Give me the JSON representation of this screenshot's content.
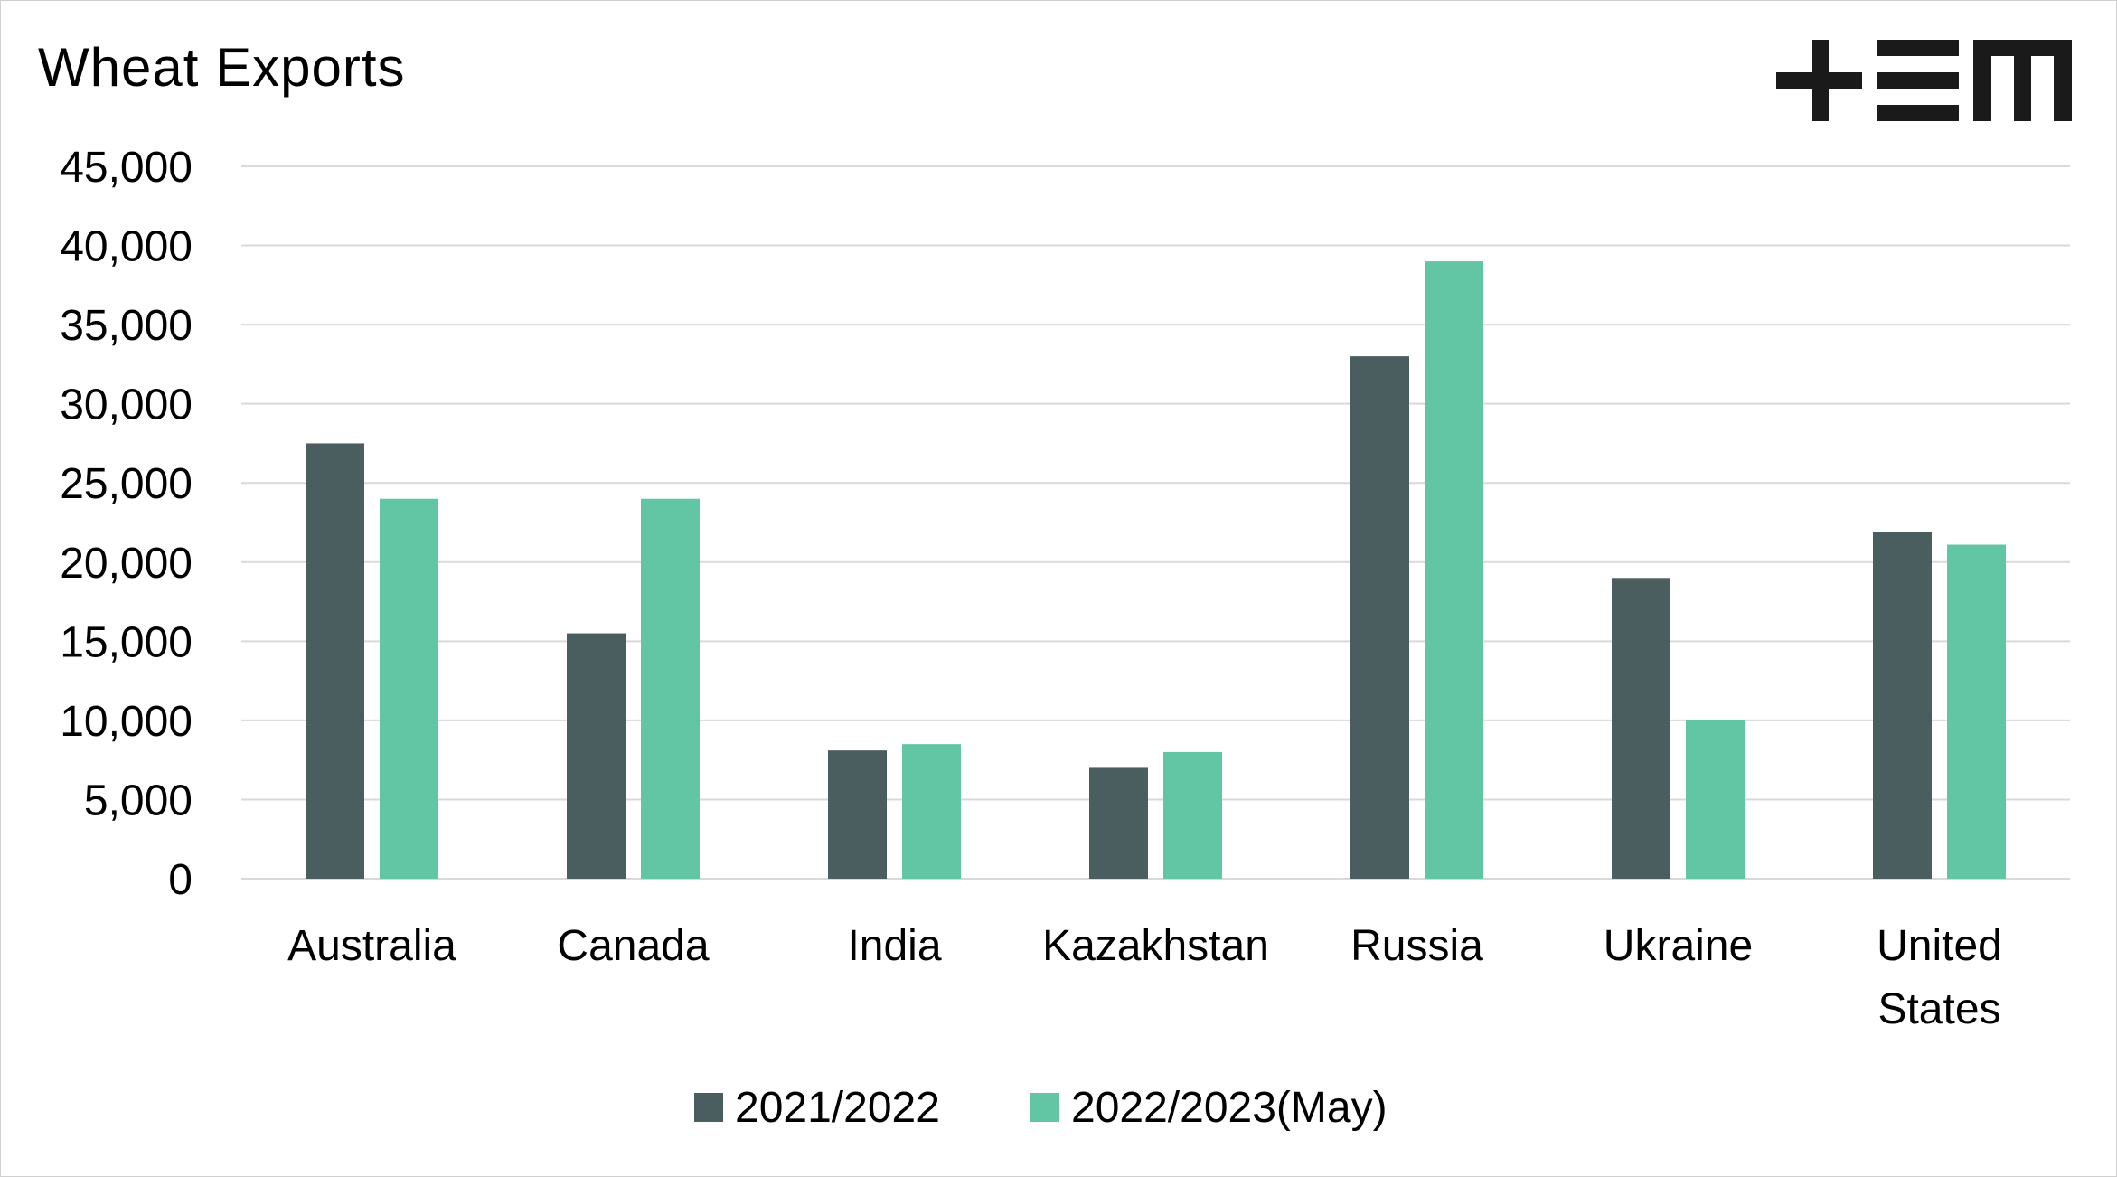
{
  "title": "Wheat Exports",
  "brand": "TEM",
  "colors": {
    "series_1": "#4a5e60",
    "series_2": "#62c6a5",
    "grid": "#d9d9d9",
    "logo": "#1a1a1a"
  },
  "chart_data": {
    "type": "bar",
    "title": "Wheat Exports",
    "xlabel": "",
    "ylabel": "",
    "ylim": [
      0,
      45000
    ],
    "yticks": [
      "0",
      "5,000",
      "10,000",
      "15,000",
      "20,000",
      "25,000",
      "30,000",
      "35,000",
      "40,000",
      "45,000"
    ],
    "grid": true,
    "legend_position": "bottom",
    "categories": [
      [
        "Australia"
      ],
      [
        "Canada"
      ],
      [
        "India"
      ],
      [
        "Kazakhstan"
      ],
      [
        "Russia"
      ],
      [
        "Ukraine"
      ],
      [
        "United",
        "States"
      ]
    ],
    "series": [
      {
        "name": "2021/2022",
        "values": [
          27500,
          15500,
          8100,
          7000,
          33000,
          19000,
          21900
        ]
      },
      {
        "name": "2022/2023(May)",
        "values": [
          24000,
          24000,
          8500,
          8000,
          39000,
          10000,
          21100
        ]
      }
    ]
  }
}
